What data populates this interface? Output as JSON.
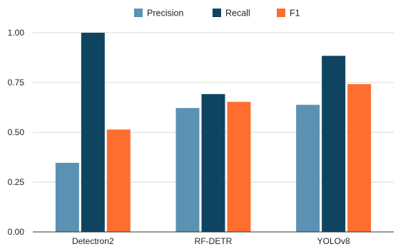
{
  "chart_data": {
    "type": "bar",
    "title": "",
    "xlabel": "",
    "ylabel": "",
    "categories": [
      "Detectron2",
      "RF-DETR",
      "YOLOv8"
    ],
    "series": [
      {
        "name": "Precision",
        "color": "#5b92b3",
        "values": [
          0.347,
          0.622,
          0.638
        ]
      },
      {
        "name": "Recall",
        "color": "#0f4461",
        "values": [
          1.0,
          0.692,
          0.884
        ]
      },
      {
        "name": "F1",
        "color": "#fe6e2f",
        "values": [
          0.514,
          0.653,
          0.742
        ]
      }
    ],
    "ylim": [
      0,
      1
    ],
    "yticks": [
      {
        "value": 0,
        "label": "0.00"
      },
      {
        "value": 0.25,
        "label": "0.25"
      },
      {
        "value": 0.5,
        "label": "0.50"
      },
      {
        "value": 0.75,
        "label": "0.75"
      },
      {
        "value": 1,
        "label": "1.00"
      }
    ],
    "grid": true,
    "legend_position": "top-center"
  }
}
